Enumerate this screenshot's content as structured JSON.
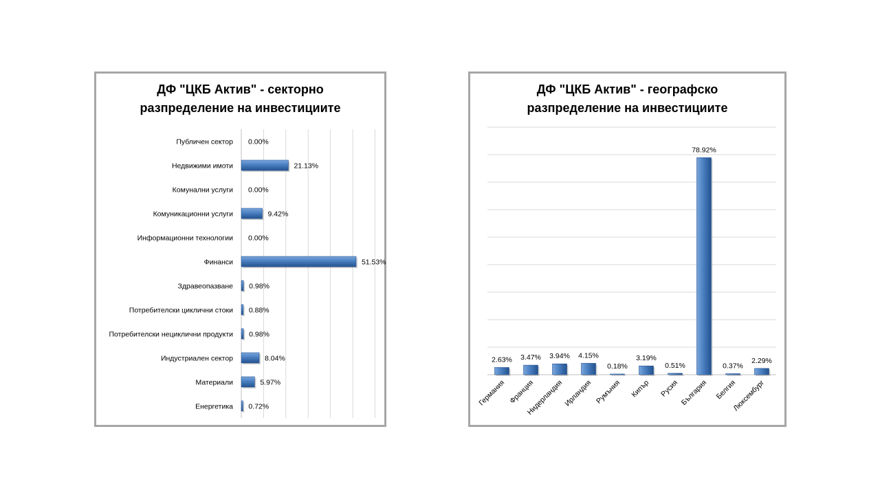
{
  "colors": {
    "bar_light": "#7aa6dd",
    "bar_mid": "#4a7fc1",
    "bar_dark": "#24528f",
    "gridline": "#d9d9d9",
    "border": "#a6a6a6"
  },
  "chart_data": [
    {
      "type": "bar",
      "orientation": "horizontal",
      "title_lines": [
        "ДФ \"ЦКБ Актив\" - секторно",
        "разпределение на инвестициите"
      ],
      "categories": [
        "Публичен сектор",
        "Недвижими имоти",
        "Комунални услуги",
        "Комуникационни услуги",
        "Информационни технологии",
        "Финанси",
        "Здравеопазване",
        "Потребителски циклични стоки",
        "Потребителски нециклични продукти",
        "Индустриален сектор",
        "Материали",
        "Енергетика"
      ],
      "values": [
        0.0,
        21.13,
        0.0,
        9.42,
        0.0,
        51.53,
        0.98,
        0.88,
        0.98,
        8.04,
        5.97,
        0.72
      ],
      "data_labels": [
        "0.00%",
        "21.13%",
        "0.00%",
        "9.42%",
        "0.00%",
        "51.53%",
        "0.98%",
        "0.88%",
        "0.98%",
        "8.04%",
        "5.97%",
        "0.72%"
      ],
      "xlim": [
        0,
        60
      ],
      "grid": true,
      "legend": "none"
    },
    {
      "type": "bar",
      "orientation": "vertical",
      "title_lines": [
        "ДФ \"ЦКБ Актив\" - географско",
        "разпределение на инвестициите"
      ],
      "categories": [
        "Германия",
        "Франция",
        "Нидерландия",
        "Ирландия",
        "Румъния",
        "Кипър",
        "Русия",
        "България",
        "Белгия",
        "Люксембург"
      ],
      "values": [
        2.63,
        3.47,
        3.94,
        4.15,
        0.18,
        3.19,
        0.51,
        78.92,
        0.37,
        2.29
      ],
      "data_labels": [
        "2.63%",
        "3.47%",
        "3.94%",
        "4.15%",
        "0.18%",
        "3.19%",
        "0.51%",
        "78.92%",
        "0.37%",
        "2.29%"
      ],
      "ylim": [
        0,
        90
      ],
      "grid": true,
      "legend": "none"
    }
  ]
}
